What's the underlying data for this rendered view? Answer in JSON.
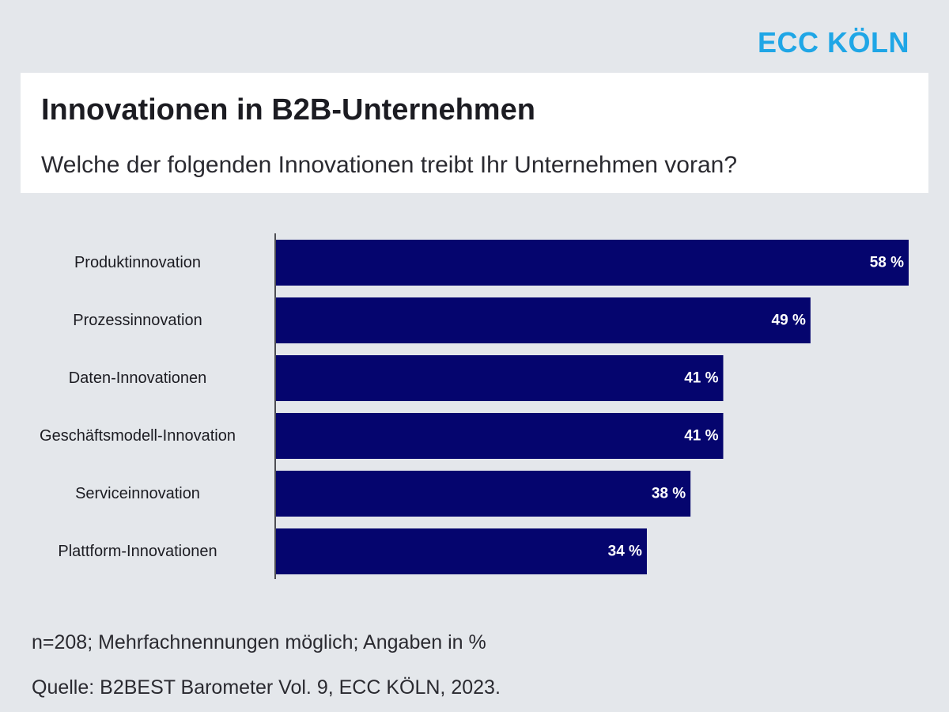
{
  "brand": {
    "logo_text": "ECC KÖLN",
    "logo_color": "#1fa6e6"
  },
  "header": {
    "title": "Innovationen in B2B-Unternehmen",
    "subtitle": "Welche der folgenden Innovationen treibt Ihr Unternehmen voran?"
  },
  "chart_data": {
    "type": "bar",
    "orientation": "horizontal",
    "categories": [
      "Produktinnovation",
      "Prozessinnovation",
      "Daten-Innovationen",
      "Geschäftsmodell-Innovation",
      "Serviceinnovation",
      "Plattform-Innovationen"
    ],
    "values": [
      58,
      49,
      41,
      41,
      38,
      34
    ],
    "value_labels": [
      "58 %",
      "49 %",
      "41 %",
      "41 %",
      "38 %",
      "34 %"
    ],
    "unit": "%",
    "bar_color": "#05056e",
    "grid": false,
    "legend": "none"
  },
  "footer": {
    "note": "n=208; Mehrfachnennungen möglich; Angaben in %",
    "source": "Quelle: B2BEST Barometer Vol. 9, ECC KÖLN, 2023."
  }
}
